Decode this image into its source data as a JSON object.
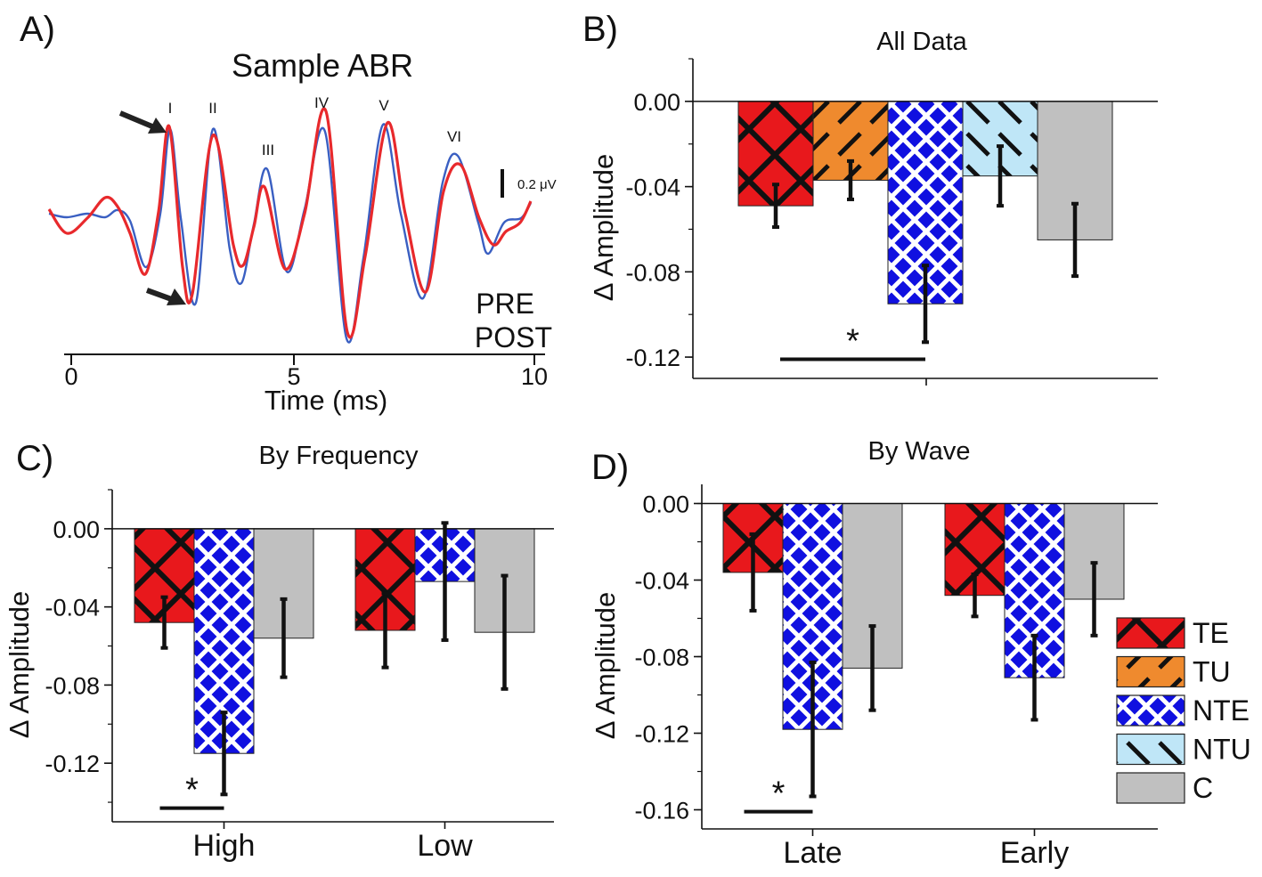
{
  "panels": {
    "a": {
      "label": "A)",
      "title": "Sample ABR"
    },
    "b": {
      "label": "B)",
      "title": "All Data"
    },
    "c": {
      "label": "C)",
      "title": "By Frequency"
    },
    "d": {
      "label": "D)",
      "title": "By Wave"
    }
  },
  "colors": {
    "TE": "#e8181c",
    "TU": "#ef8a2e",
    "NTE": "#1010e0",
    "NTU": "#bfe6f7",
    "C": "#c0c0c0",
    "pre": "#3a5fc2",
    "post": "#e8292c",
    "axis": "#111111"
  },
  "legend": [
    "TE",
    "TU",
    "NTE",
    "NTU",
    "C"
  ],
  "chart_data": [
    {
      "panel": "A",
      "type": "line",
      "title": "Sample ABR",
      "xlabel": "Time (ms)",
      "xlim": [
        0,
        10
      ],
      "xticks": [
        "0",
        "5",
        "10"
      ],
      "scale_bar": "0.2 μV",
      "wave_labels": [
        "I",
        "II",
        "III",
        "IV",
        "V",
        "VI"
      ],
      "series": [
        {
          "name": "PRE"
        },
        {
          "name": "POST"
        }
      ]
    },
    {
      "panel": "B",
      "type": "bar",
      "title": "All Data",
      "ylabel": "Δ Amplitude",
      "ylim": [
        -0.13,
        0.02
      ],
      "yticks": [
        "0.00",
        "-0.04",
        "-0.08",
        "-0.12"
      ],
      "categories": [
        ""
      ],
      "series": [
        {
          "name": "TE",
          "values": [
            -0.049
          ],
          "err": [
            0.01
          ]
        },
        {
          "name": "TU",
          "values": [
            -0.037
          ],
          "err": [
            0.009
          ]
        },
        {
          "name": "NTE",
          "values": [
            -0.095
          ],
          "err": [
            0.018
          ]
        },
        {
          "name": "NTU",
          "values": [
            -0.035
          ],
          "err": [
            0.014
          ]
        },
        {
          "name": "C",
          "values": [
            -0.065
          ],
          "err": [
            0.017
          ]
        }
      ],
      "annotation": "*"
    },
    {
      "panel": "C",
      "type": "bar",
      "title": "By Frequency",
      "ylabel": "Δ Amplitude",
      "ylim": [
        -0.15,
        0.02
      ],
      "yticks": [
        "0.00",
        "-0.04",
        "-0.08",
        "-0.12"
      ],
      "categories": [
        "High",
        "Low"
      ],
      "series": [
        {
          "name": "TE",
          "values": [
            -0.048,
            -0.052
          ],
          "err": [
            0.013,
            0.019
          ]
        },
        {
          "name": "NTE",
          "values": [
            -0.115,
            -0.027
          ],
          "err": [
            0.021,
            0.03
          ]
        },
        {
          "name": "C",
          "values": [
            -0.056,
            -0.053
          ],
          "err": [
            0.02,
            0.029
          ]
        }
      ],
      "annotation": "*"
    },
    {
      "panel": "D",
      "type": "bar",
      "title": "By Wave",
      "ylabel": "Δ Amplitude",
      "ylim": [
        -0.17,
        0.01
      ],
      "yticks": [
        "0.00",
        "-0.04",
        "-0.08",
        "-0.12",
        "-0.16"
      ],
      "categories": [
        "Late",
        "Early"
      ],
      "series": [
        {
          "name": "TE",
          "values": [
            -0.036,
            -0.048
          ],
          "err": [
            0.02,
            0.011
          ]
        },
        {
          "name": "NTE",
          "values": [
            -0.118,
            -0.091
          ],
          "err": [
            0.035,
            0.022
          ]
        },
        {
          "name": "C",
          "values": [
            -0.086,
            -0.05
          ],
          "err": [
            0.022,
            0.019
          ]
        }
      ],
      "annotation": "*"
    }
  ]
}
